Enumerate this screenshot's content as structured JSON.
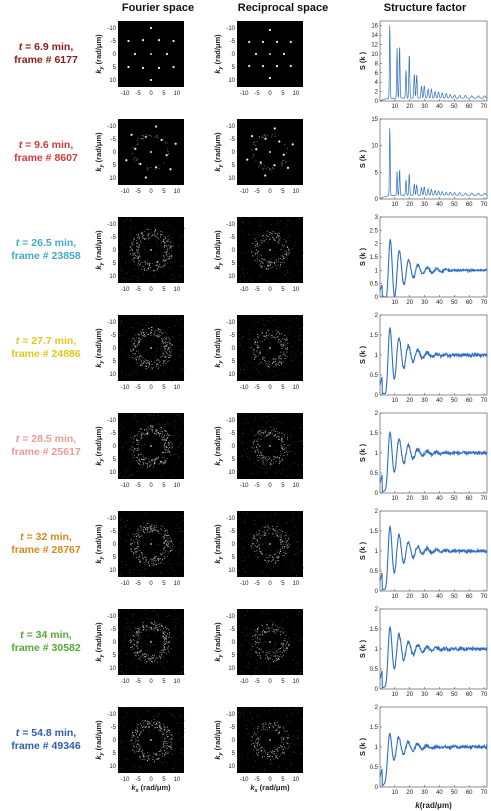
{
  "headers": {
    "fourier": "Fourier space",
    "reciprocal": "Reciprocal space",
    "structure": "Structure factor"
  },
  "axes": {
    "ky_label": "k",
    "ky_sub": "y",
    "ky_unit": "(rad/μm)",
    "kx_label": "k",
    "kx_sub": "x",
    "kx_unit": "(rad/μm)",
    "k_label": "k",
    "k_unit": "(rad/μm)",
    "s_label": "S (k )",
    "image_ticks": [
      "-10",
      "-5",
      "0",
      "5",
      "10"
    ]
  },
  "rows": [
    {
      "t_prefix": "t",
      "time": "= 6.9 min,",
      "frame": "frame # 6177",
      "color": "#8e1a1a"
    },
    {
      "t_prefix": "t",
      "time": "= 9.6 min,",
      "frame": "frame # 8607",
      "color": "#d23a3a"
    },
    {
      "t_prefix": "t",
      "time": "= 26.5 min,",
      "frame": "frame # 23858",
      "color": "#45a9c9"
    },
    {
      "t_prefix": "t",
      "time": "= 27.7 min,",
      "frame": "frame # 24886",
      "color": "#e3c61c"
    },
    {
      "t_prefix": "t",
      "time": "= 28.5 min,",
      "frame": "frame # 25617",
      "color": "#ee9a9a"
    },
    {
      "t_prefix": "t",
      "time": "= 32 min,",
      "frame": "frame # 28767",
      "color": "#d48a1a"
    },
    {
      "t_prefix": "t",
      "time": "= 34 min,",
      "frame": "frame # 30582",
      "color": "#55aa33"
    },
    {
      "t_prefix": "t",
      "time": "= 54.8 min,",
      "frame": "frame # 49346",
      "color": "#2f5fa8"
    }
  ],
  "chart_data": {
    "type": "line",
    "xlabel": "k(rad/μm)",
    "ylabel": "S (k )",
    "xlim": [
      0,
      72
    ],
    "xticks": [
      10,
      20,
      30,
      40,
      50,
      60,
      70
    ],
    "line_color": "#2e6fc4",
    "panels": [
      {
        "frame": "frame # 6177",
        "ylim": [
          0,
          17
        ],
        "yticks": [
          0,
          2,
          4,
          6,
          8,
          10,
          12,
          14,
          16
        ],
        "peaks_k": [
          6.6,
          11.5,
          13.2,
          17.5,
          19.7,
          23.1,
          24.7,
          27.9,
          29.8,
          32.4,
          34.6,
          37.1,
          39.4,
          41.9,
          44.6,
          47.3,
          50.2,
          53.6,
          57.5,
          61.8,
          66.2,
          70.5
        ],
        "peaks_s": [
          16.8,
          11.3,
          11.8,
          6.6,
          10.1,
          5.8,
          5.6,
          3.2,
          3.3,
          2.6,
          2.5,
          2.0,
          1.9,
          1.7,
          1.6,
          1.4,
          1.3,
          1.2,
          1.2,
          1.1,
          1.1,
          1.1
        ],
        "baseline": 0.6
      },
      {
        "frame": "frame # 8607",
        "ylim": [
          0,
          15
        ],
        "yticks": [
          0,
          5,
          10,
          15
        ],
        "peaks_k": [
          6.6,
          11.5,
          13.2,
          17.5,
          19.7,
          23.1,
          24.7,
          27.9,
          29.8,
          32.4,
          34.6,
          37.1,
          39.4,
          41.9,
          44.6,
          47.3,
          50.2,
          53.6,
          57.5,
          61.8,
          66.2,
          70.5
        ],
        "peaks_s": [
          14.0,
          5.2,
          5.6,
          3.6,
          4.8,
          2.9,
          2.7,
          2.2,
          2.3,
          1.9,
          1.8,
          1.6,
          1.5,
          1.4,
          1.3,
          1.3,
          1.2,
          1.2,
          1.1,
          1.1,
          1.1,
          1.1
        ],
        "baseline": 0.7
      },
      {
        "frame": "frame # 23858",
        "ylim": [
          0,
          3
        ],
        "yticks": [
          0,
          0.5,
          1,
          1.5,
          2,
          2.5,
          3
        ],
        "peak": 2.35,
        "k0": 6.8
      },
      {
        "frame": "frame # 24886",
        "ylim": [
          0,
          2
        ],
        "yticks": [
          0,
          0.5,
          1,
          1.5,
          2
        ],
        "peak": 1.82,
        "k0": 6.6
      },
      {
        "frame": "frame # 25617",
        "ylim": [
          0,
          2
        ],
        "yticks": [
          0,
          0.5,
          1,
          1.5,
          2
        ],
        "peak": 1.65,
        "k0": 6.6
      },
      {
        "frame": "frame # 28767",
        "ylim": [
          0,
          2
        ],
        "yticks": [
          0,
          0.5,
          1,
          1.5,
          2
        ],
        "peak": 1.75,
        "k0": 6.6
      },
      {
        "frame": "frame # 30582",
        "ylim": [
          0,
          2
        ],
        "yticks": [
          0,
          0.5,
          1,
          1.5,
          2
        ],
        "peak": 1.68,
        "k0": 6.6
      },
      {
        "frame": "frame # 49346",
        "ylim": [
          0,
          2
        ],
        "yticks": [
          0,
          0.5,
          1,
          1.5,
          2
        ],
        "peak": 1.45,
        "k0": 6.4
      }
    ]
  }
}
